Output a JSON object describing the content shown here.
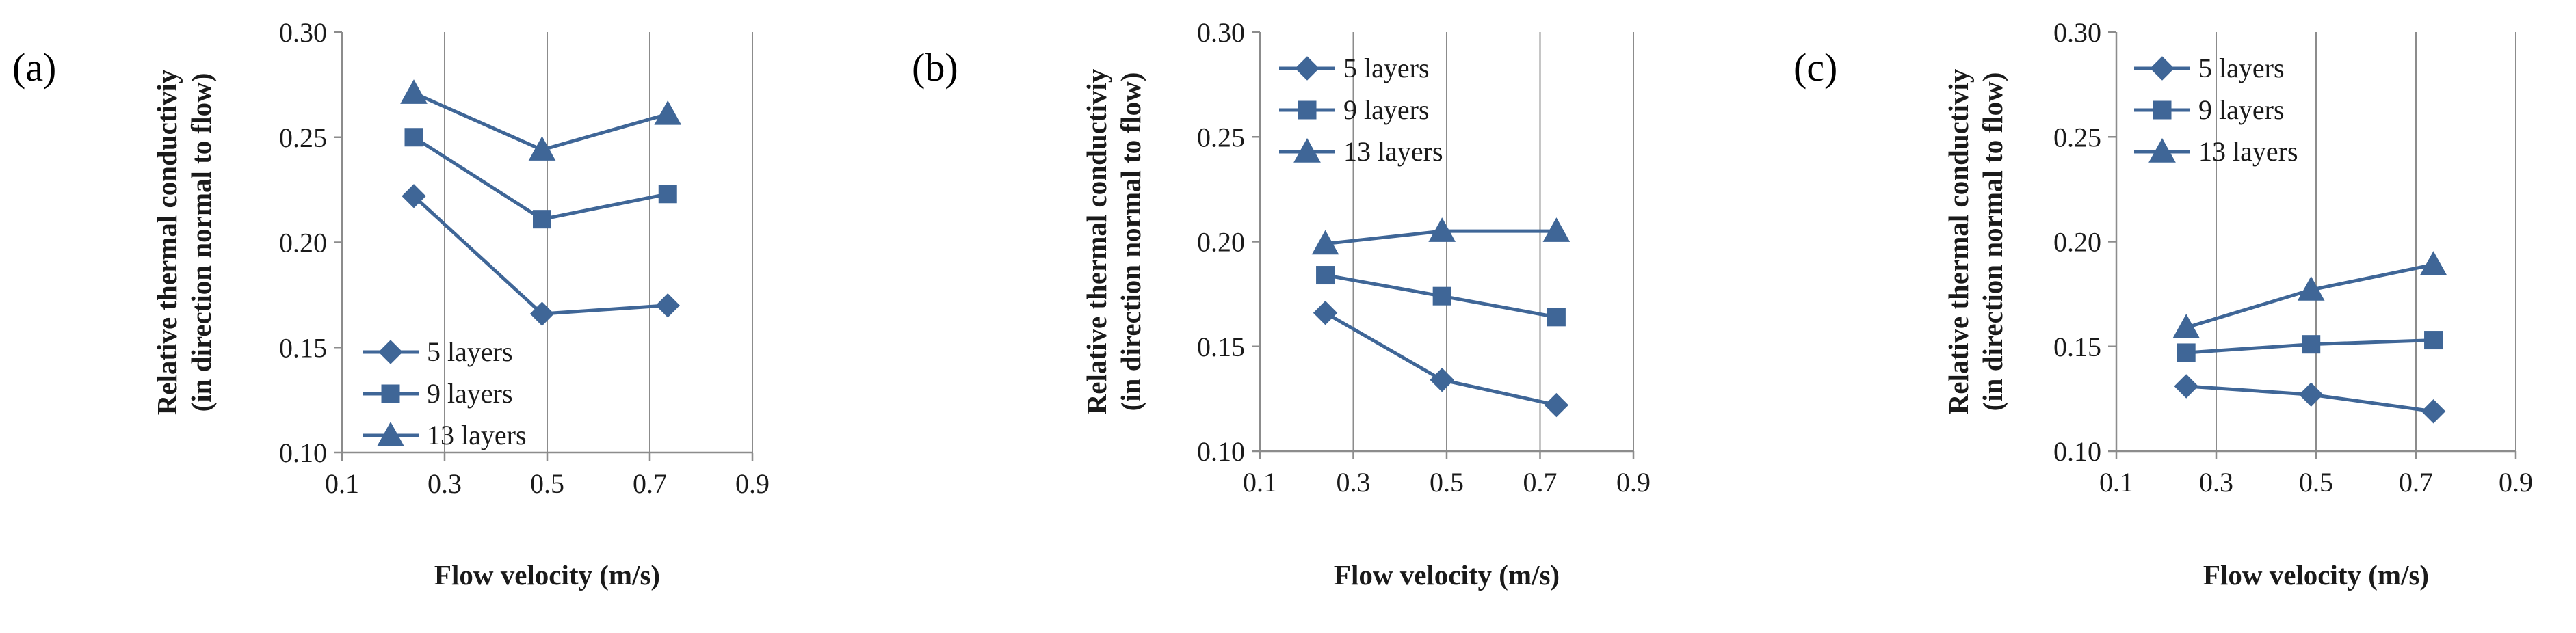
{
  "chart_data": [
    {
      "type": "line",
      "panel_label": "(a)",
      "xlabel": "Flow velocity  (m/s)",
      "ylabel": [
        "Relative thermal conductiviy",
        "(in direction normal to flow)"
      ],
      "x": [
        0.24,
        0.49,
        0.735
      ],
      "xlim": [
        0.1,
        0.9
      ],
      "ylim": [
        0.1,
        0.3
      ],
      "xticks": [
        "0.1",
        "0.3",
        "0.5",
        "0.7",
        "0.9"
      ],
      "yticks": [
        "0.10",
        "0.15",
        "0.20",
        "0.25",
        "0.30"
      ],
      "grid": "vertical",
      "legend_position": "bottom-left",
      "series": [
        {
          "name": "5 layers",
          "marker": "diamond",
          "values": [
            0.222,
            0.166,
            0.17
          ]
        },
        {
          "name": "9 layers",
          "marker": "square",
          "values": [
            0.25,
            0.211,
            0.223
          ]
        },
        {
          "name": "13 layers",
          "marker": "triangle",
          "values": [
            0.271,
            0.244,
            0.261
          ]
        }
      ]
    },
    {
      "type": "line",
      "panel_label": "(b)",
      "xlabel": "Flow velocity  (m/s)",
      "ylabel": [
        "Relative thermal conductiviy",
        "(in direction normal to flow)"
      ],
      "x": [
        0.24,
        0.49,
        0.735
      ],
      "xlim": [
        0.1,
        0.9
      ],
      "ylim": [
        0.1,
        0.3
      ],
      "xticks": [
        "0.1",
        "0.3",
        "0.5",
        "0.7",
        "0.9"
      ],
      "yticks": [
        "0.10",
        "0.15",
        "0.20",
        "0.25",
        "0.30"
      ],
      "grid": "vertical",
      "legend_position": "top-left",
      "series": [
        {
          "name": "5 layers",
          "marker": "diamond",
          "values": [
            0.166,
            0.134,
            0.122
          ]
        },
        {
          "name": "9 layers",
          "marker": "square",
          "values": [
            0.184,
            0.174,
            0.164
          ]
        },
        {
          "name": "13 layers",
          "marker": "triangle",
          "values": [
            0.199,
            0.205,
            0.205
          ]
        }
      ]
    },
    {
      "type": "line",
      "panel_label": "(c)",
      "xlabel": "Flow velocity  (m/s)",
      "ylabel": [
        "Relative thermal conductiviy",
        "(in direction normal to flow)"
      ],
      "x": [
        0.24,
        0.49,
        0.735
      ],
      "xlim": [
        0.1,
        0.9
      ],
      "ylim": [
        0.1,
        0.3
      ],
      "xticks": [
        "0.1",
        "0.3",
        "0.5",
        "0.7",
        "0.9"
      ],
      "yticks": [
        "0.10",
        "0.15",
        "0.20",
        "0.25",
        "0.30"
      ],
      "grid": "vertical",
      "legend_position": "top-left",
      "series": [
        {
          "name": "5 layers",
          "marker": "diamond",
          "values": [
            0.131,
            0.127,
            0.119
          ]
        },
        {
          "name": "9 layers",
          "marker": "square",
          "values": [
            0.147,
            0.151,
            0.153
          ]
        },
        {
          "name": "13 layers",
          "marker": "triangle",
          "values": [
            0.159,
            0.177,
            0.189
          ]
        }
      ]
    }
  ],
  "colors": {
    "series": "#3f6697",
    "grid": "#8c8c8c"
  }
}
